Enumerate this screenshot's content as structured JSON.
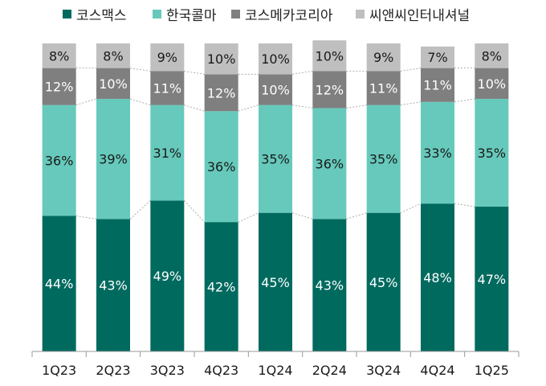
{
  "chart_data": {
    "type": "bar",
    "stacked": true,
    "categories": [
      "1Q23",
      "2Q23",
      "3Q23",
      "4Q23",
      "1Q24",
      "2Q24",
      "3Q24",
      "4Q24",
      "1Q25"
    ],
    "series": [
      {
        "name": "코스맥스",
        "color": "#006a5f",
        "values": [
          44,
          43,
          49,
          42,
          45,
          43,
          45,
          48,
          47
        ]
      },
      {
        "name": "한국콜마",
        "color": "#66c9bb",
        "values": [
          36,
          39,
          31,
          36,
          35,
          36,
          35,
          33,
          35
        ]
      },
      {
        "name": "코스메카코리아",
        "color": "#7f7f7f",
        "values": [
          12,
          10,
          11,
          12,
          10,
          12,
          11,
          11,
          10
        ]
      },
      {
        "name": "씨앤씨인터내셔널",
        "color": "#bfbfbf",
        "values": [
          8,
          8,
          9,
          10,
          10,
          10,
          9,
          7,
          8
        ]
      }
    ],
    "value_suffix": "%",
    "connector_lines": true,
    "legend_position": "top",
    "grid": false,
    "ylim": [
      0,
      100
    ]
  }
}
